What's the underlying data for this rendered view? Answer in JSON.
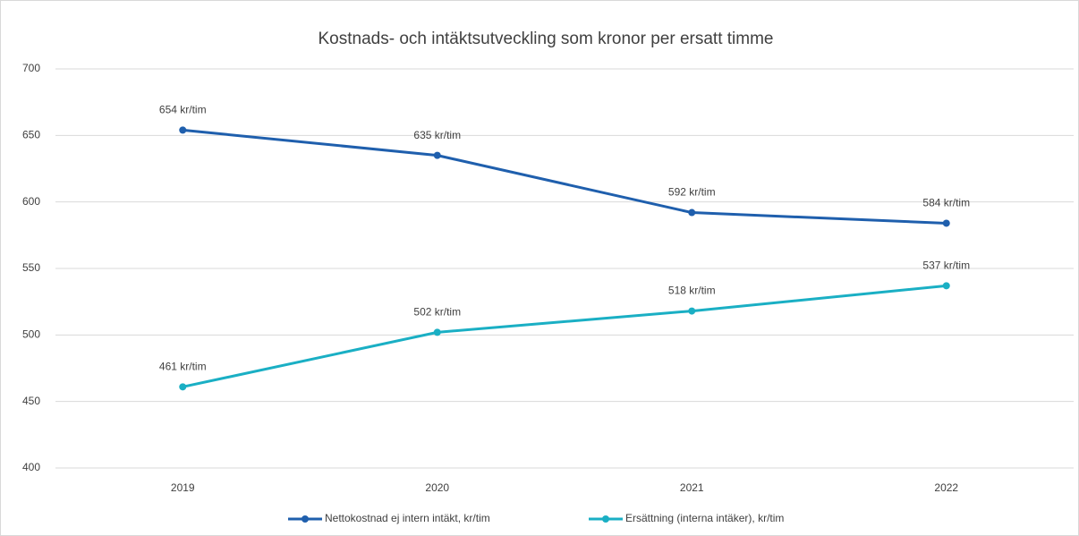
{
  "chart_data": {
    "type": "line",
    "title": "Kostnads- och intäktsutveckling som kronor per ersatt timme",
    "categories": [
      "2019",
      "2020",
      "2021",
      "2022"
    ],
    "series": [
      {
        "name": "Nettokostnad ej intern intäkt, kr/tim",
        "color": "#1f5fad",
        "values": [
          654,
          635,
          592,
          584
        ],
        "value_labels": [
          "654 kr/tim",
          "635 kr/tim",
          "592 kr/tim",
          "584 kr/tim"
        ]
      },
      {
        "name": "Ersättning (interna intäker), kr/tim",
        "color": "#1aafc4",
        "values": [
          461,
          502,
          518,
          537
        ],
        "value_labels": [
          "461 kr/tim",
          "502 kr/tim",
          "518 kr/tim",
          "537 kr/tim"
        ]
      }
    ],
    "ylim": [
      400,
      700
    ],
    "yticks": [
      400,
      450,
      500,
      550,
      600,
      650,
      700
    ],
    "grid": true,
    "legend": "bottom"
  }
}
